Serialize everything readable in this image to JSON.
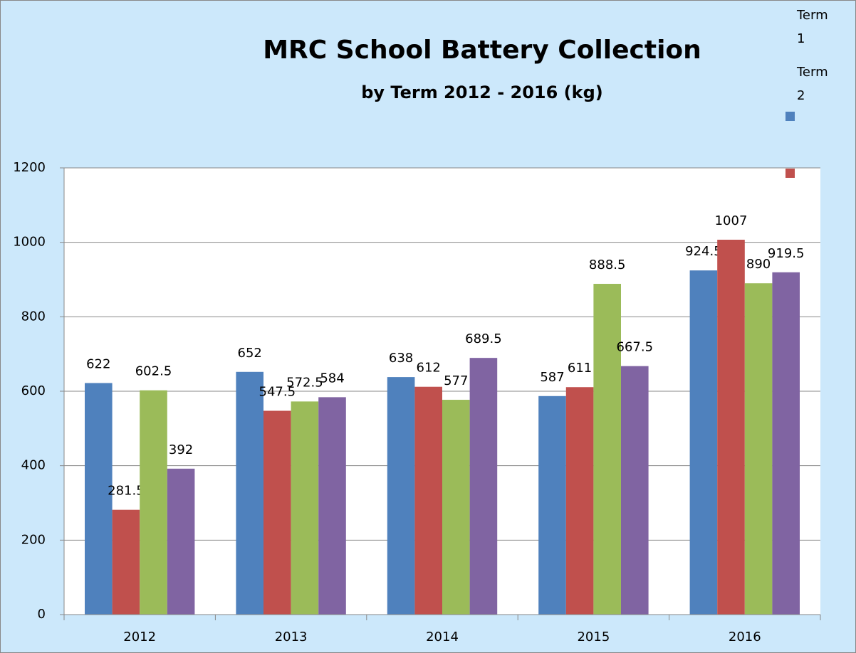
{
  "chart_data": {
    "type": "bar",
    "title": "MRC School Battery Collection",
    "subtitle": "by Term 2012 - 2016  (kg)",
    "categories": [
      "2012",
      "2013",
      "2014",
      "2015",
      "2016"
    ],
    "series": [
      {
        "name": "Term 1",
        "color": "#4f81bd",
        "values": [
          622,
          652,
          638,
          587,
          924.5
        ]
      },
      {
        "name": "Term 2",
        "color": "#c0504d",
        "values": [
          281.5,
          547.5,
          612,
          611,
          1007
        ]
      },
      {
        "color": "#9bbb59",
        "values": [
          602.5,
          572.5,
          577,
          888.5,
          890
        ]
      },
      {
        "color": "#8064a2",
        "values": [
          392,
          584,
          689.5,
          667.5,
          919.5
        ]
      }
    ],
    "ylim": [
      0,
      1200
    ],
    "yticks": [
      0,
      200,
      400,
      600,
      800,
      1000,
      1200
    ],
    "grid": true,
    "legend": "top-right"
  }
}
